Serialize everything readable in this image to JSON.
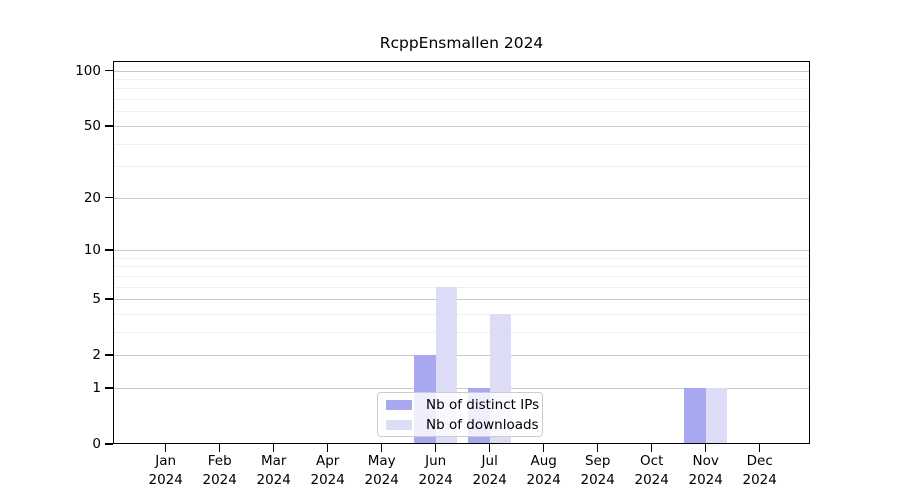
{
  "chart_data": {
    "type": "bar",
    "title": "RcppEnsmallen 2024",
    "categories": [
      "Jan",
      "Feb",
      "Mar",
      "Apr",
      "May",
      "Jun",
      "Jul",
      "Aug",
      "Sep",
      "Oct",
      "Nov",
      "Dec"
    ],
    "year_label": "2024",
    "series": [
      {
        "name": "Nb of distinct IPs",
        "color": "#a8a8f0",
        "values": [
          0,
          0,
          0,
          0,
          0,
          2,
          1,
          0,
          0,
          0,
          1,
          0
        ]
      },
      {
        "name": "Nb of downloads",
        "color": "#dcdcf7",
        "values": [
          0,
          0,
          0,
          0,
          0,
          6,
          4,
          0,
          0,
          0,
          1,
          0
        ]
      }
    ],
    "yscale": "log1p",
    "ylim": [
      0,
      112
    ],
    "ymajor_ticks": [
      {
        "label": "0",
        "value": 0
      },
      {
        "label": "1",
        "value": 1
      },
      {
        "label": "2",
        "value": 2
      },
      {
        "label": "5",
        "value": 5
      },
      {
        "label": "10",
        "value": 10
      },
      {
        "label": "20",
        "value": 20
      },
      {
        "label": "50",
        "value": 50
      },
      {
        "label": "100",
        "value": 100
      }
    ],
    "yminor_ticks": [
      3,
      4,
      6,
      7,
      8,
      9,
      30,
      40,
      60,
      70,
      80,
      90
    ],
    "grid": true,
    "legend_position": "lower center",
    "legend": [
      "Nb of distinct IPs",
      "Nb of downloads"
    ]
  },
  "colors": {
    "distinct_ips_bar": "#a8a8f0",
    "downloads_bar": "#dcdcf7",
    "major_grid": "#c9c9c9",
    "minor_grid": "#efefef",
    "spine": "#000000",
    "legend_border": "#cccccc"
  }
}
